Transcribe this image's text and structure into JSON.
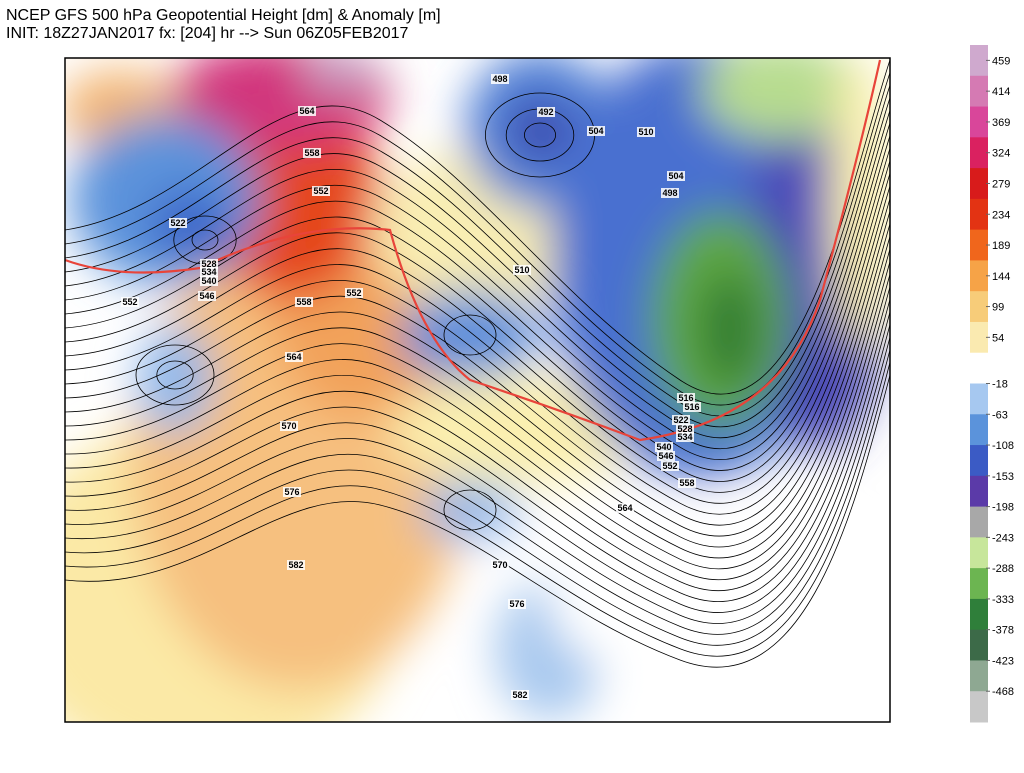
{
  "header": {
    "title": "NCEP GFS 500 hPa Geopotential Height [dm] & Anomaly [m]",
    "subtitle": "INIT: 18Z27JAN2017 fx: [204] hr --> Sun 06Z05FEB2017"
  },
  "map": {
    "contour_labels": [
      564,
      558,
      552,
      522,
      528,
      534,
      540,
      546,
      552,
      558,
      552,
      564,
      570,
      576,
      582,
      570,
      576,
      582,
      498,
      492,
      504,
      510,
      504,
      498,
      510,
      516,
      516,
      522,
      528,
      534,
      540,
      546,
      552,
      558,
      564
    ]
  },
  "colorbar": {
    "ticks": [
      459,
      414,
      369,
      324,
      279,
      234,
      189,
      144,
      99,
      54,
      -18,
      -63,
      -108,
      -153,
      -198,
      -243,
      -288,
      -333,
      -378,
      -423,
      -468
    ]
  }
}
